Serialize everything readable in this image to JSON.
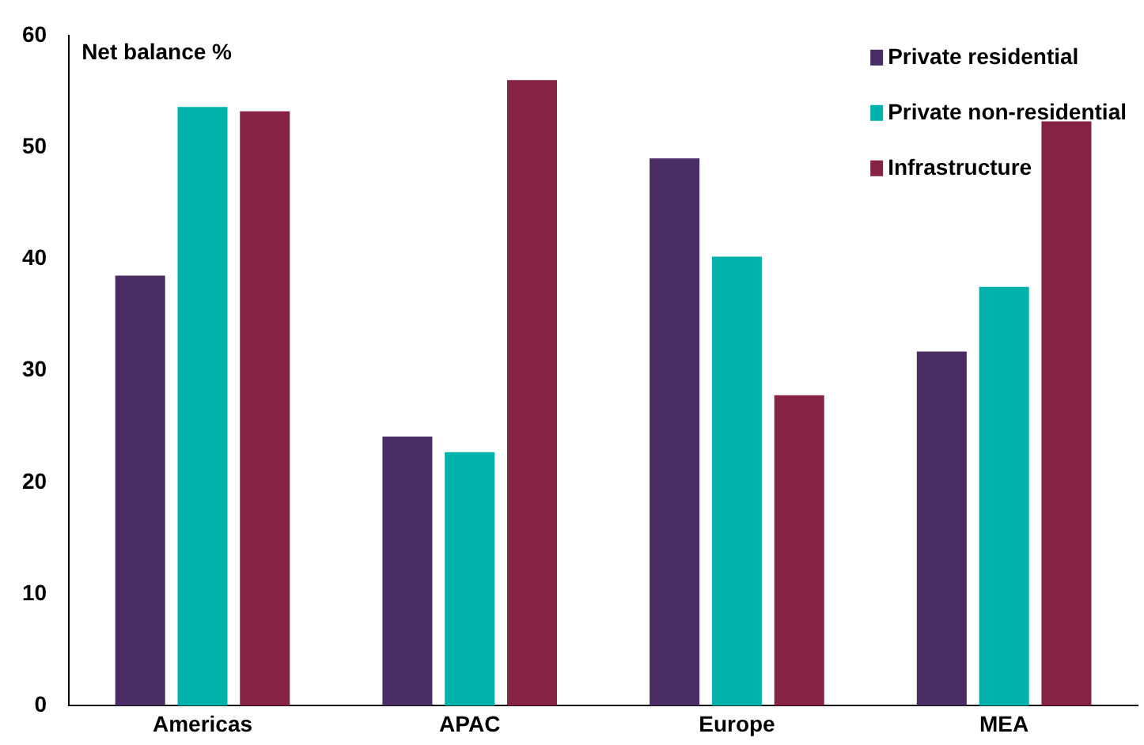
{
  "chart_data": {
    "type": "bar",
    "ylabel": "Net balance %",
    "categories": [
      "Americas",
      "APAC",
      "Europe",
      "MEA"
    ],
    "series": [
      {
        "name": "Private residential",
        "color": "#4b2d66",
        "values": [
          38.5,
          24.1,
          49.0,
          31.7
        ]
      },
      {
        "name": "Private non-residential",
        "color": "#00b2a9",
        "values": [
          53.6,
          22.7,
          40.2,
          37.5
        ]
      },
      {
        "name": "Infrastructure",
        "color": "#862342",
        "values": [
          53.2,
          56.0,
          27.8,
          52.3
        ]
      }
    ],
    "ylim": [
      0,
      60
    ],
    "yticks": [
      0,
      10,
      20,
      30,
      40,
      50,
      60
    ],
    "grid": false,
    "legend": "top right"
  }
}
